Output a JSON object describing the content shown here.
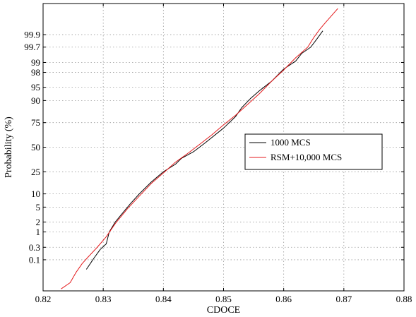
{
  "chart_data": {
    "type": "line",
    "xlabel": "CDOCE",
    "ylabel": "Probability (%)",
    "x_ticks": [
      0.82,
      0.83,
      0.84,
      0.85,
      0.86,
      0.87,
      0.88
    ],
    "x_tick_labels": [
      "0.82",
      "0.83",
      "0.84",
      "0.85",
      "0.86",
      "0.87",
      "0.88"
    ],
    "xlim": [
      0.82,
      0.88
    ],
    "y_scale": "normal-probability",
    "y_ticks": [
      0.1,
      0.3,
      1,
      2,
      5,
      10,
      25,
      50,
      75,
      90,
      95,
      98,
      99,
      99.7,
      99.9
    ],
    "y_tick_labels": [
      "0.1",
      "0.3",
      "1",
      "2",
      "5",
      "10",
      "25",
      "50",
      "75",
      "90",
      "95",
      "98",
      "99",
      "99.7",
      "99.9"
    ],
    "ylim": [
      0.004,
      99.996
    ],
    "grid": true,
    "legend_position": "center-right",
    "series": [
      {
        "name": "1000 MCS",
        "color": "#000000",
        "points": [
          [
            0.8272,
            0.04
          ],
          [
            0.8285,
            0.12
          ],
          [
            0.8295,
            0.25
          ],
          [
            0.8305,
            0.4
          ],
          [
            0.831,
            1.0
          ],
          [
            0.832,
            2.0
          ],
          [
            0.833,
            3.2
          ],
          [
            0.8345,
            6.0
          ],
          [
            0.836,
            10.0
          ],
          [
            0.838,
            17.0
          ],
          [
            0.84,
            25.0
          ],
          [
            0.842,
            32.0
          ],
          [
            0.843,
            38.0
          ],
          [
            0.845,
            45.0
          ],
          [
            0.847,
            55.0
          ],
          [
            0.85,
            70.0
          ],
          [
            0.852,
            80.0
          ],
          [
            0.853,
            86.0
          ],
          [
            0.8545,
            91.0
          ],
          [
            0.856,
            94.0
          ],
          [
            0.858,
            96.5
          ],
          [
            0.86,
            98.4
          ],
          [
            0.862,
            99.1
          ],
          [
            0.863,
            99.5
          ],
          [
            0.8645,
            99.7
          ],
          [
            0.8655,
            99.85
          ],
          [
            0.8665,
            99.93
          ]
        ]
      },
      {
        "name": "RSM+10,000 MCS",
        "color": "#e41a1c",
        "points": [
          [
            0.823,
            0.005
          ],
          [
            0.8245,
            0.01
          ],
          [
            0.8255,
            0.03
          ],
          [
            0.8265,
            0.07
          ],
          [
            0.8275,
            0.13
          ],
          [
            0.829,
            0.3
          ],
          [
            0.8305,
            0.7
          ],
          [
            0.832,
            1.8
          ],
          [
            0.834,
            4.5
          ],
          [
            0.836,
            9.0
          ],
          [
            0.838,
            16.0
          ],
          [
            0.84,
            24.0
          ],
          [
            0.842,
            34.0
          ],
          [
            0.844,
            43.0
          ],
          [
            0.846,
            53.0
          ],
          [
            0.848,
            63.0
          ],
          [
            0.85,
            73.0
          ],
          [
            0.852,
            81.0
          ],
          [
            0.854,
            88.0
          ],
          [
            0.856,
            93.0
          ],
          [
            0.858,
            96.5
          ],
          [
            0.86,
            98.3
          ],
          [
            0.862,
            99.3
          ],
          [
            0.864,
            99.7
          ],
          [
            0.865,
            99.87
          ],
          [
            0.866,
            99.94
          ],
          [
            0.867,
            99.97
          ],
          [
            0.869,
            99.993
          ]
        ]
      }
    ]
  }
}
